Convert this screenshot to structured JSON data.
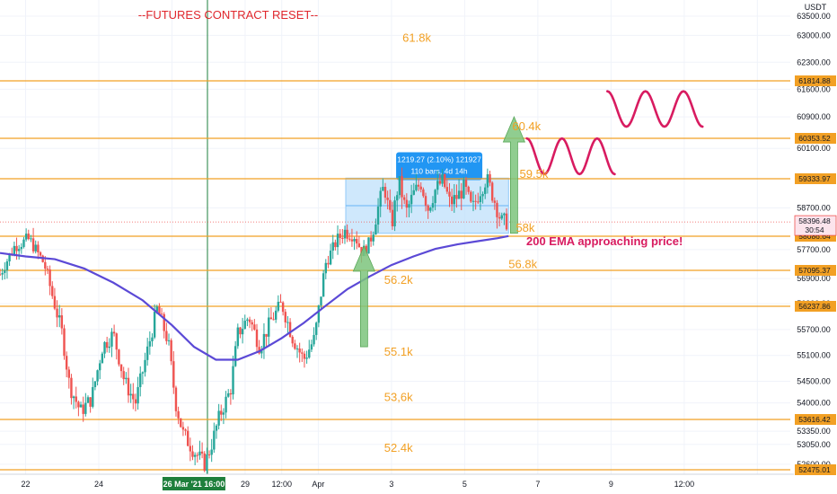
{
  "chart_data": {
    "type": "candlestick",
    "title": "--FUTURES CONTRACT RESET--",
    "currency": "USDT",
    "ylim": [
      52400,
      63700
    ],
    "y_ticks": [
      63500,
      63000,
      62300,
      61600,
      60900,
      60100,
      58700,
      57700,
      56900,
      56300,
      55700,
      55100,
      54500,
      54000,
      53350,
      53050,
      52600
    ],
    "y_tick_labels": [
      "63500.00",
      "63000.00",
      "62300.00",
      "61600.00",
      "60900.00",
      "60100.00",
      "58700.00",
      "57700.00",
      "56900.00",
      "56300.00",
      "55700.00",
      "55100.00",
      "54500.00",
      "54000.00",
      "53350.00",
      "53050.00",
      "52600.00"
    ],
    "x_ticks": [
      0,
      2,
      4,
      6,
      7,
      8,
      10,
      12,
      14,
      16,
      18,
      20
    ],
    "x_tick_labels": [
      "22",
      "24",
      "",
      "29",
      "12:00",
      "Apr",
      "3",
      "5",
      "7",
      "9",
      "12:00",
      ""
    ],
    "x_range": [
      -0.7,
      20.9
    ],
    "highlight_x": {
      "value": 4.6,
      "label": "26 Mar '21 16:00"
    },
    "levels": [
      {
        "price": 61814.88,
        "price_label": "61814.88",
        "zone_label": "61.8k",
        "zone_y": 62950,
        "zone_x": 10.3
      },
      {
        "price": 60353.52,
        "price_label": "60353.52",
        "zone_label": "60.4k",
        "zone_y": 60670,
        "zone_x": 13.3
      },
      {
        "price": 59333.97,
        "price_label": "59333.97",
        "zone_label": "59.5k",
        "zone_y": 59470,
        "zone_x": 13.5
      },
      {
        "price": 58086.64,
        "price_label": "58086.64",
        "zone_label": "58k",
        "zone_y": 58280,
        "zone_x": 13.4
      },
      {
        "price": 57095.37,
        "price_label": "57095.37",
        "zone_label": "56.8k",
        "zone_y": 57290,
        "zone_x": 13.2
      },
      {
        "price": 56237.86,
        "price_label": "56237.86",
        "zone_label": "56.2k",
        "zone_y": 56880,
        "zone_x": 9.8
      },
      {
        "price": 53616.42,
        "price_label": "53616.42",
        "zone_label": "55.1k",
        "zone_y": 55200,
        "zone_x": 9.8
      },
      {
        "price": 52475.01,
        "price_label": "52475.01",
        "zone_label": "53,6k",
        "zone_y": 54150,
        "zone_x": 9.8
      }
    ],
    "extra_zone_label": {
      "label": "52.4k",
      "y": 52980,
      "x": 9.8
    },
    "current_price": {
      "value": 58396.48,
      "label": "58396.48",
      "countdown": "30:54"
    },
    "range_measure": {
      "text_line1": "1219.27 (2.10%) 121927",
      "text_line2": "110 bars, 4d 14h",
      "x0": 8.75,
      "x1": 13.2,
      "y0": 58150,
      "y1": 59350
    },
    "annotation": "200 EMA approaching price!",
    "ema_200": [
      [
        -0.7,
        57600
      ],
      [
        0,
        57500
      ],
      [
        0.8,
        57420
      ],
      [
        1.6,
        57150
      ],
      [
        2.4,
        56800
      ],
      [
        3.2,
        56380
      ],
      [
        4,
        55800
      ],
      [
        4.6,
        55300
      ],
      [
        5.2,
        55000
      ],
      [
        5.8,
        55000
      ],
      [
        6.4,
        55200
      ],
      [
        7,
        55500
      ],
      [
        7.6,
        55850
      ],
      [
        8.2,
        56250
      ],
      [
        8.8,
        56650
      ],
      [
        9.4,
        56950
      ],
      [
        10,
        57250
      ],
      [
        10.6,
        57500
      ],
      [
        11.2,
        57720
      ],
      [
        11.8,
        57850
      ],
      [
        12.4,
        57950
      ],
      [
        12.9,
        58030
      ],
      [
        13.2,
        58090
      ]
    ],
    "price_path": [
      [
        -0.7,
        57000
      ],
      [
        -0.3,
        57800
      ],
      [
        0.1,
        58000
      ],
      [
        0.5,
        57300
      ],
      [
        0.7,
        56600
      ],
      [
        1.0,
        55600
      ],
      [
        1.2,
        54400
      ],
      [
        1.5,
        53800
      ],
      [
        1.8,
        54100
      ],
      [
        2.1,
        55300
      ],
      [
        2.4,
        55600
      ],
      [
        2.7,
        54500
      ],
      [
        3.0,
        54000
      ],
      [
        3.3,
        55100
      ],
      [
        3.6,
        56200
      ],
      [
        3.9,
        55400
      ],
      [
        4.1,
        54000
      ],
      [
        4.3,
        53300
      ],
      [
        4.6,
        52900
      ],
      [
        4.9,
        52600
      ],
      [
        5.1,
        53100
      ],
      [
        5.3,
        53700
      ],
      [
        5.6,
        54300
      ],
      [
        5.8,
        55600
      ],
      [
        6.1,
        56000
      ],
      [
        6.4,
        55300
      ],
      [
        6.7,
        55900
      ],
      [
        7.0,
        56300
      ],
      [
        7.3,
        55500
      ],
      [
        7.6,
        55000
      ],
      [
        7.9,
        55500
      ],
      [
        8.2,
        57300
      ],
      [
        8.5,
        57950
      ],
      [
        8.7,
        58200
      ],
      [
        9.0,
        58100
      ],
      [
        9.2,
        57600
      ],
      [
        9.4,
        57900
      ],
      [
        9.6,
        58600
      ],
      [
        9.8,
        59200
      ],
      [
        10.0,
        58300
      ],
      [
        10.2,
        59300
      ],
      [
        10.4,
        58600
      ],
      [
        10.6,
        59000
      ],
      [
        10.8,
        59250
      ],
      [
        11.0,
        58700
      ],
      [
        11.2,
        59100
      ],
      [
        11.4,
        59300
      ],
      [
        11.6,
        58800
      ],
      [
        11.8,
        58950
      ],
      [
        12.0,
        59150
      ],
      [
        12.2,
        58650
      ],
      [
        12.4,
        59050
      ],
      [
        12.6,
        59350
      ],
      [
        12.8,
        58900
      ],
      [
        13.0,
        58400
      ],
      [
        13.2,
        58400
      ]
    ],
    "up_arrows": [
      {
        "x": 9.25,
        "from": 55300,
        "to": 57800
      },
      {
        "x": 13.35,
        "from": 58150,
        "to": 60900
      }
    ],
    "waves": [
      {
        "x0": 13.7,
        "x1": 16.1,
        "yc": 59900,
        "amp": 450,
        "cycles": 2.5
      },
      {
        "x0": 15.9,
        "x1": 18.5,
        "yc": 61100,
        "amp": 450,
        "cycles": 2.5
      }
    ],
    "colors": {
      "up": "#26a69a",
      "down": "#ef5350",
      "level": "#f2a024",
      "ema": "#5b49d6",
      "zone": "#bbdefb",
      "tooltip": "#2196f3",
      "arrow": "#7dc47d",
      "wave": "#d81b60",
      "annotation": "#d81b60",
      "highlight_line": "#1e7f3c"
    }
  }
}
